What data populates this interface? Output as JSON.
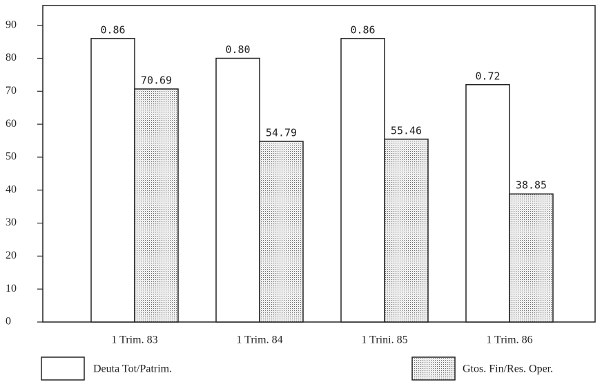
{
  "chart_data": {
    "type": "bar",
    "categories": [
      "1 Trim. 83",
      "1 Trim. 84",
      "1 Trini. 85",
      "1 Trim. 86"
    ],
    "series": [
      {
        "name": "Deuta Tot/Patrim.",
        "color": "#ffffff",
        "values": [
          86,
          80,
          86,
          72
        ],
        "value_labels": [
          "0.86",
          "0.80",
          "0.86",
          "0.72"
        ]
      },
      {
        "name": "Gtos. Fin/Res. Oper.",
        "color": "#d0d0d0",
        "pattern": "dots",
        "values": [
          70.69,
          54.79,
          55.46,
          38.85
        ]
      }
    ],
    "ylim": [
      0,
      96
    ],
    "yticks": [
      0,
      10,
      20,
      30,
      40,
      50,
      60,
      70,
      80,
      90
    ],
    "grid": false
  }
}
